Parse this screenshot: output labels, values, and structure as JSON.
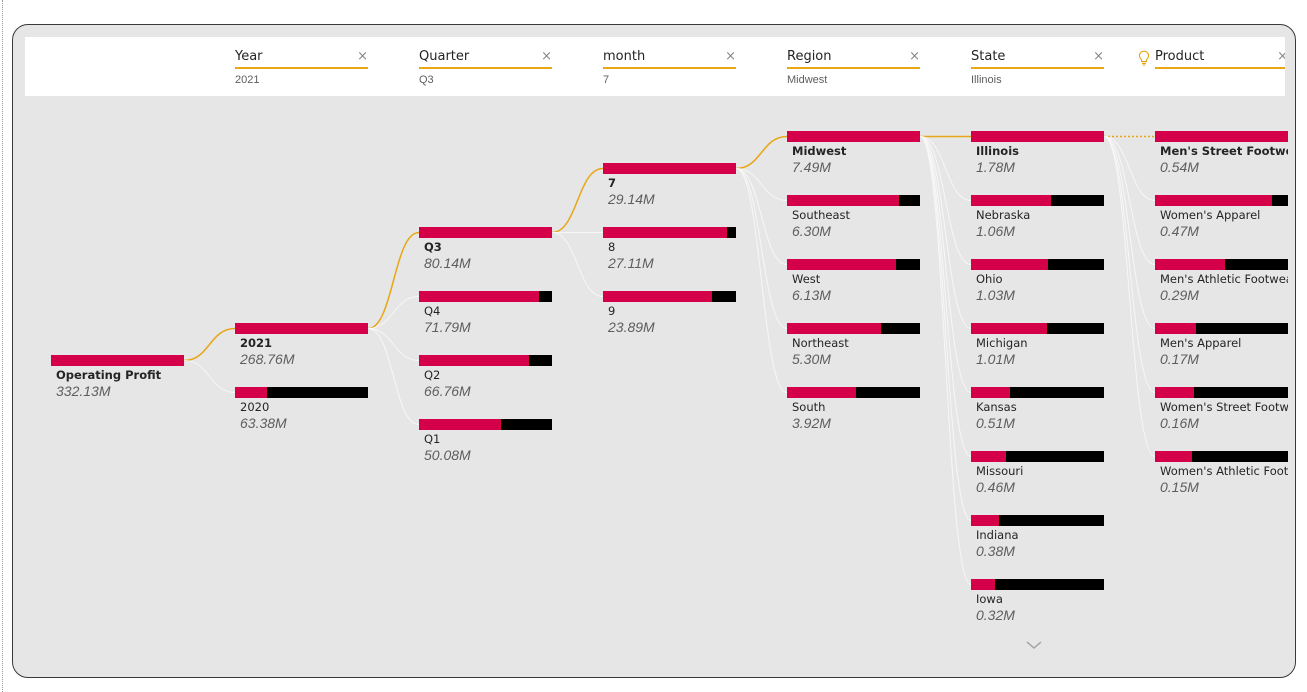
{
  "colors": {
    "accent": "#e8a615",
    "bar_fill": "#d4014a",
    "bar_remainder": "#000000",
    "canvas": "#e6e6e6",
    "header_bg": "#ffffff"
  },
  "levels": [
    {
      "name": "Year",
      "value": "2021",
      "clear_icon": "close-icon"
    },
    {
      "name": "Quarter",
      "value": "Q3",
      "clear_icon": "close-icon"
    },
    {
      "name": "month",
      "value": "7",
      "clear_icon": "close-icon"
    },
    {
      "name": "Region",
      "value": "Midwest",
      "clear_icon": "close-icon"
    },
    {
      "name": "State",
      "value": "Illinois",
      "clear_icon": "close-icon"
    },
    {
      "name": "Product",
      "value": "",
      "icon": "lightbulb-icon",
      "clear_icon": "close-icon"
    }
  ],
  "root": {
    "label": "Operating Profit",
    "value": "332.13M"
  },
  "columns": [
    {
      "nodes": [
        {
          "label": "2021",
          "value": "268.76M",
          "share": 1.0,
          "selected": true
        },
        {
          "label": "2020",
          "value": "63.38M",
          "share": 0.24,
          "selected": false
        }
      ]
    },
    {
      "nodes": [
        {
          "label": "Q3",
          "value": "80.14M",
          "share": 1.0,
          "selected": true
        },
        {
          "label": "Q4",
          "value": "71.79M",
          "share": 0.9,
          "selected": false
        },
        {
          "label": "Q2",
          "value": "66.76M",
          "share": 0.83,
          "selected": false
        },
        {
          "label": "Q1",
          "value": "50.08M",
          "share": 0.62,
          "selected": false
        }
      ]
    },
    {
      "nodes": [
        {
          "label": "7",
          "value": "29.14M",
          "share": 1.0,
          "selected": true
        },
        {
          "label": "8",
          "value": "27.11M",
          "share": 0.93,
          "selected": false
        },
        {
          "label": "9",
          "value": "23.89M",
          "share": 0.82,
          "selected": false
        }
      ]
    },
    {
      "nodes": [
        {
          "label": "Midwest",
          "value": "7.49M",
          "share": 1.0,
          "selected": true
        },
        {
          "label": "Southeast",
          "value": "6.30M",
          "share": 0.84,
          "selected": false
        },
        {
          "label": "West",
          "value": "6.13M",
          "share": 0.82,
          "selected": false
        },
        {
          "label": "Northeast",
          "value": "5.30M",
          "share": 0.71,
          "selected": false
        },
        {
          "label": "South",
          "value": "3.92M",
          "share": 0.52,
          "selected": false
        }
      ]
    },
    {
      "nodes": [
        {
          "label": "Illinois",
          "value": "1.78M",
          "share": 1.0,
          "selected": true
        },
        {
          "label": "Nebraska",
          "value": "1.06M",
          "share": 0.6,
          "selected": false
        },
        {
          "label": "Ohio",
          "value": "1.03M",
          "share": 0.58,
          "selected": false
        },
        {
          "label": "Michigan",
          "value": "1.01M",
          "share": 0.57,
          "selected": false
        },
        {
          "label": "Kansas",
          "value": "0.51M",
          "share": 0.29,
          "selected": false
        },
        {
          "label": "Missouri",
          "value": "0.46M",
          "share": 0.26,
          "selected": false
        },
        {
          "label": "Indiana",
          "value": "0.38M",
          "share": 0.21,
          "selected": false
        },
        {
          "label": "Iowa",
          "value": "0.32M",
          "share": 0.18,
          "selected": false
        }
      ]
    },
    {
      "nodes": [
        {
          "label": "Men's Street Footwea",
          "value": "0.54M",
          "share": 1.0,
          "selected": true
        },
        {
          "label": "Women's Apparel",
          "value": "0.47M",
          "share": 0.88,
          "selected": false
        },
        {
          "label": "Men's Athletic Footwea",
          "value": "0.29M",
          "share": 0.53,
          "selected": false
        },
        {
          "label": "Men's Apparel",
          "value": "0.17M",
          "share": 0.31,
          "selected": false
        },
        {
          "label": "Women's Street Footw.",
          "value": "0.16M",
          "share": 0.29,
          "selected": false
        },
        {
          "label": "Women's Athletic Foot.",
          "value": "0.15M",
          "share": 0.28,
          "selected": false
        }
      ]
    }
  ],
  "scroll_icon": "chevron-down-icon"
}
